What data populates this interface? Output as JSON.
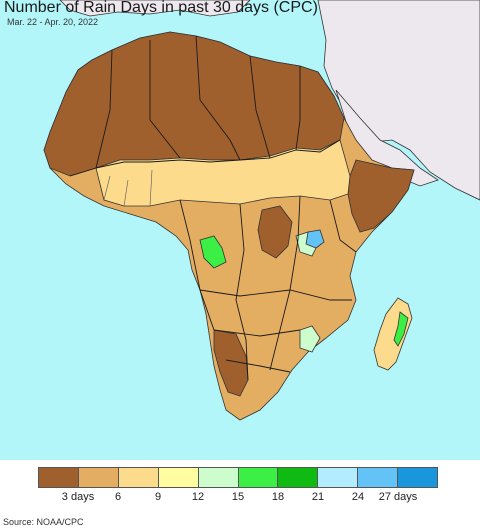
{
  "title": "Number of Rain Days in past 30 days (CPC)",
  "date_range": "Mar. 22 - Apr. 20, 2022",
  "legend": {
    "colors": [
      "#a0602e",
      "#e3ad62",
      "#fddb8c",
      "#fefea0",
      "#cdfdcd",
      "#3cef44",
      "#0fbb12",
      "#b3ecfe",
      "#63c3f6",
      "#1a97dc"
    ],
    "labels": [
      "3 days",
      "6",
      "9",
      "12",
      "15",
      "18",
      "21",
      "24",
      "27 days"
    ]
  },
  "map": {
    "ocean_color": "#b3f6f9",
    "outside_land_color": "#ede8ee",
    "region": "Africa"
  },
  "source": "Source: NOAA/CPC"
}
